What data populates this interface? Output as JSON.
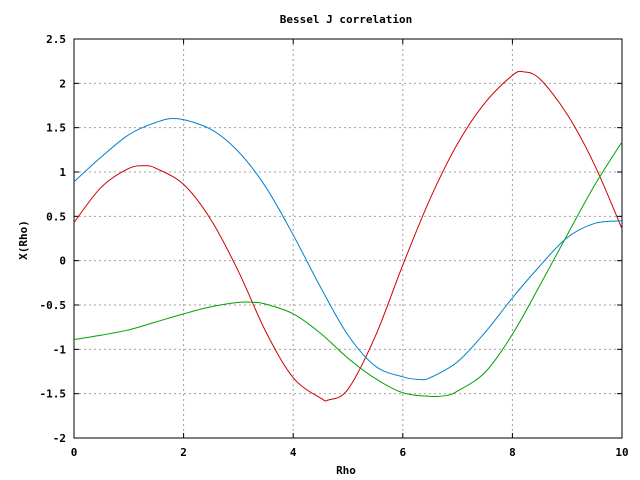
{
  "chart_data": {
    "type": "line",
    "title": "Bessel J correlation",
    "xlabel": "Rho",
    "ylabel": "X(Rho)",
    "xlim": [
      0,
      10
    ],
    "ylim": [
      -2,
      2.5
    ],
    "grid": true,
    "x_ticks": [
      "0",
      "2",
      "4",
      "6",
      "8",
      "10"
    ],
    "y_ticks": [
      "-2",
      "-1.5",
      "-1",
      "-0.5",
      "0",
      "0.5",
      "1",
      "1.5",
      "2",
      "2.5"
    ],
    "x_tick_values": [
      0,
      2,
      4,
      6,
      8,
      10
    ],
    "y_tick_values": [
      -2,
      -1.5,
      -1,
      -0.5,
      0,
      0.5,
      1,
      1.5,
      2,
      2.5
    ],
    "series": [
      {
        "color": "#d00000",
        "x": [
          0,
          0.5,
          1.0,
          1.3,
          1.5,
          2.0,
          2.5,
          3.0,
          3.5,
          4.0,
          4.5,
          4.65,
          5.0,
          5.5,
          6.0,
          6.5,
          7.0,
          7.5,
          8.0,
          8.2,
          8.5,
          9.0,
          9.5,
          10.0
        ],
        "y": [
          0.43,
          0.83,
          1.04,
          1.07,
          1.04,
          0.86,
          0.46,
          -0.12,
          -0.8,
          -1.32,
          -1.55,
          -1.57,
          -1.45,
          -0.85,
          -0.05,
          0.7,
          1.32,
          1.78,
          2.09,
          2.13,
          2.05,
          1.65,
          1.08,
          0.36
        ]
      },
      {
        "color": "#0080d0",
        "x": [
          0,
          0.5,
          1.0,
          1.5,
          1.9,
          2.5,
          3.0,
          3.5,
          4.0,
          4.5,
          5.0,
          5.5,
          6.0,
          6.3,
          6.5,
          7.0,
          7.5,
          8.0,
          8.5,
          9.0,
          9.5,
          10.0
        ],
        "y": [
          0.89,
          1.17,
          1.42,
          1.56,
          1.6,
          1.48,
          1.23,
          0.83,
          0.29,
          -0.3,
          -0.84,
          -1.19,
          -1.31,
          -1.34,
          -1.32,
          -1.14,
          -0.81,
          -0.42,
          -0.06,
          0.26,
          0.42,
          0.45
        ]
      },
      {
        "color": "#00a000",
        "x": [
          0,
          0.5,
          1.0,
          1.5,
          2.0,
          2.5,
          3.0,
          3.3,
          3.5,
          4.0,
          4.5,
          5.0,
          5.5,
          6.0,
          6.5,
          6.8,
          7.0,
          7.5,
          8.0,
          8.5,
          9.0,
          9.5,
          10.0
        ],
        "y": [
          -0.89,
          -0.84,
          -0.78,
          -0.69,
          -0.6,
          -0.52,
          -0.47,
          -0.47,
          -0.49,
          -0.6,
          -0.82,
          -1.1,
          -1.33,
          -1.49,
          -1.53,
          -1.52,
          -1.47,
          -1.26,
          -0.83,
          -0.28,
          0.29,
          0.85,
          1.34
        ]
      }
    ]
  }
}
